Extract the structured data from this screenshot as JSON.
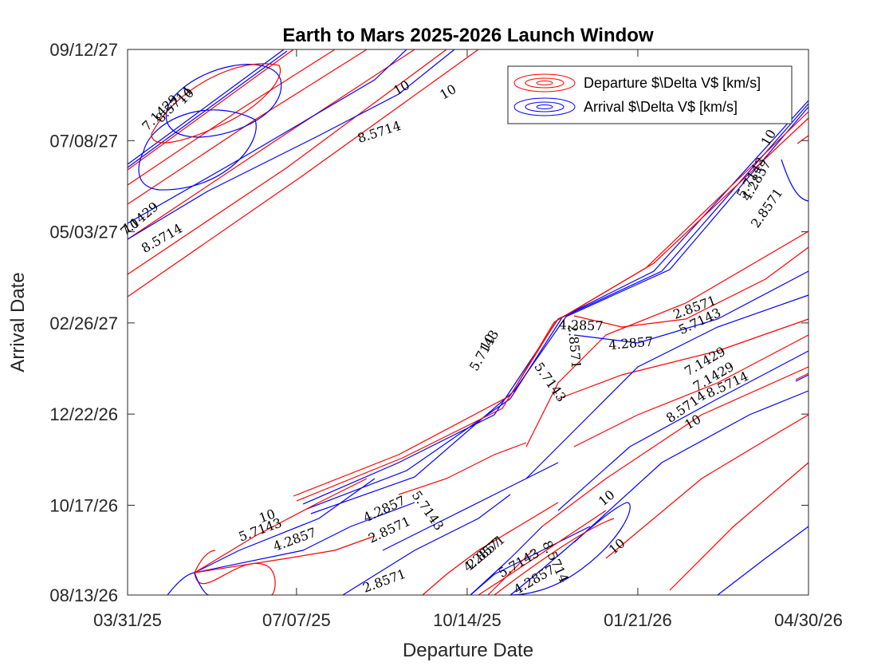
{
  "chart_data": {
    "type": "contour",
    "title": "Earth to Mars 2025-2026 Launch Window",
    "xlabel": "Departure Date",
    "ylabel": "Arrival Date",
    "x_ticks": [
      "03/31/25",
      "07/07/25",
      "10/14/25",
      "01/21/26",
      "04/30/26"
    ],
    "y_ticks": [
      "08/13/26",
      "10/17/26",
      "12/22/26",
      "02/26/27",
      "05/03/27",
      "07/08/27",
      "09/12/27"
    ],
    "xlim": [
      "03/31/25",
      "04/30/26"
    ],
    "ylim": [
      "08/13/26",
      "09/12/27"
    ],
    "grid": false,
    "legend_position": "top-right",
    "series": [
      {
        "name": "Departure $\\Delta V$ [km/s]",
        "color": "#ff0000"
      },
      {
        "name": "Arrival $\\Delta V$ [km/s]",
        "color": "#0000ff"
      }
    ],
    "contour_levels": [
      "2.8571",
      "4.2857",
      "5.7143",
      "7.1429",
      "8.5714",
      "10"
    ],
    "contour_labels": [
      {
        "text": "10",
        "x": "09/06/25",
        "y": "08/15/27",
        "angle": -30
      },
      {
        "text": "10",
        "x": "10/03/25",
        "y": "08/12/27",
        "angle": -30
      },
      {
        "text": "8.5714",
        "x": "08/24/25",
        "y": "07/14/27",
        "angle": -18
      },
      {
        "text": "10",
        "x": "04/02/25",
        "y": "05/07/27",
        "angle": -30
      },
      {
        "text": "7.1429",
        "x": "04/07/25",
        "y": "05/12/27",
        "angle": -40
      },
      {
        "text": "8.5714",
        "x": "04/20/25",
        "y": "04/28/27",
        "angle": -30
      },
      {
        "text": "7.1429",
        "x": "04/19/25",
        "y": "07/28/27",
        "angle": -45
      },
      {
        "text": "8.5714",
        "x": "04/27/25",
        "y": "08/03/27",
        "angle": -45
      },
      {
        "text": "10",
        "x": "05/04/25",
        "y": "08/09/27",
        "angle": -45
      },
      {
        "text": "4.2857",
        "x": "12/19/25",
        "y": "02/24/27",
        "angle": 2
      },
      {
        "text": "2.8571",
        "x": "12/15/25",
        "y": "02/09/27",
        "angle": 85
      },
      {
        "text": "4.2857",
        "x": "01/17/26",
        "y": "02/11/27",
        "angle": -5
      },
      {
        "text": "2.8571",
        "x": "02/23/26",
        "y": "03/09/27",
        "angle": -20
      },
      {
        "text": "5.7143",
        "x": "02/26/26",
        "y": "02/27/27",
        "angle": -25
      },
      {
        "text": "5.7143",
        "x": "12/01/25",
        "y": "01/14/27",
        "angle": 55
      },
      {
        "text": "7.1429",
        "x": "03/01/26",
        "y": "01/29/27",
        "angle": -30
      },
      {
        "text": "7.1429",
        "x": "03/06/26",
        "y": "01/18/27",
        "angle": -30
      },
      {
        "text": "8.5714",
        "x": "03/14/26",
        "y": "01/12/27",
        "angle": -25
      },
      {
        "text": "8.5714",
        "x": "02/18/26",
        "y": "12/27/26",
        "angle": -35
      },
      {
        "text": "10",
        "x": "02/22/26",
        "y": "12/16/26",
        "angle": -30
      },
      {
        "text": "10",
        "x": "01/03/26",
        "y": "10/22/26",
        "angle": -40
      },
      {
        "text": "10",
        "x": "01/09/26",
        "y": "09/17/26",
        "angle": -40
      },
      {
        "text": "8.5714",
        "x": "12/04/25",
        "y": "09/06/26",
        "angle": 65
      },
      {
        "text": "5.7143",
        "x": "11/13/25",
        "y": "09/05/26",
        "angle": -30
      },
      {
        "text": "4.2857",
        "x": "11/22/25",
        "y": "08/24/26",
        "angle": -30
      },
      {
        "text": "4.2857",
        "x": "10/23/25",
        "y": "09/11/26",
        "angle": -40
      },
      {
        "text": "2.8571",
        "x": "10/25/25",
        "y": "09/13/26",
        "angle": -40
      },
      {
        "text": "4.2857",
        "x": "08/27/25",
        "y": "10/14/26",
        "angle": -25
      },
      {
        "text": "2.8571",
        "x": "08/30/25",
        "y": "09/29/26",
        "angle": -25
      },
      {
        "text": "4.2857",
        "x": "07/06/25",
        "y": "09/22/26",
        "angle": -20
      },
      {
        "text": "5.7143",
        "x": "09/21/25",
        "y": "10/13/26",
        "angle": 55
      },
      {
        "text": "2.8571",
        "x": "08/27/25",
        "y": "08/23/26",
        "angle": -20
      },
      {
        "text": "5.7143",
        "x": "06/16/25",
        "y": "09/29/26",
        "angle": -20
      },
      {
        "text": "10",
        "x": "06/20/25",
        "y": "10/09/26",
        "angle": -20
      },
      {
        "text": "5.7143",
        "x": "10/24/25",
        "y": "02/06/27",
        "angle": -60
      },
      {
        "text": "10",
        "x": "10/26/25",
        "y": "02/12/27",
        "angle": -60
      },
      {
        "text": "4.2857",
        "x": "03/31/26",
        "y": "06/09/27",
        "angle": -60
      },
      {
        "text": "5.7143",
        "x": "03/28/26",
        "y": "06/11/27",
        "angle": -60
      },
      {
        "text": "2.8571",
        "x": "04/06/26",
        "y": "05/20/27",
        "angle": -55
      },
      {
        "text": "10",
        "x": "04/07/26",
        "y": "07/10/27",
        "angle": -60
      }
    ]
  }
}
